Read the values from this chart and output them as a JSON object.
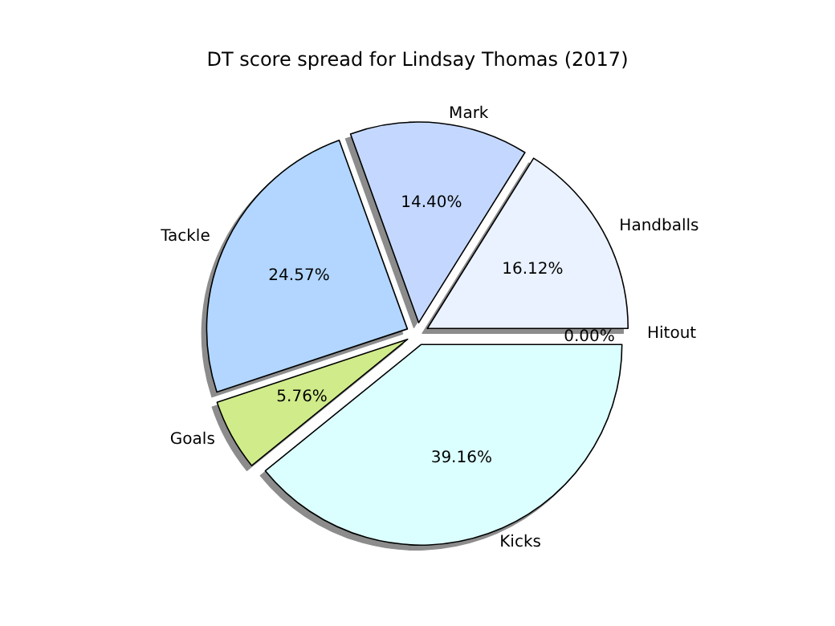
{
  "chart_data": {
    "type": "pie",
    "title": "DT score spread for Lindsay Thomas (2017)",
    "categories": [
      "Handballs",
      "Mark",
      "Tackle",
      "Goals",
      "Kicks",
      "Hitout"
    ],
    "values": [
      16.12,
      14.4,
      24.57,
      5.76,
      39.16,
      0.0
    ],
    "value_labels": [
      "16.12%",
      "14.40%",
      "24.57%",
      "5.76%",
      "39.16%",
      "0.00%"
    ],
    "colors": [
      "#eaf2ff",
      "#c4d8ff",
      "#b2d6ff",
      "#d0eb8a",
      "#dbffff",
      "#ffffff"
    ],
    "legend": false
  }
}
